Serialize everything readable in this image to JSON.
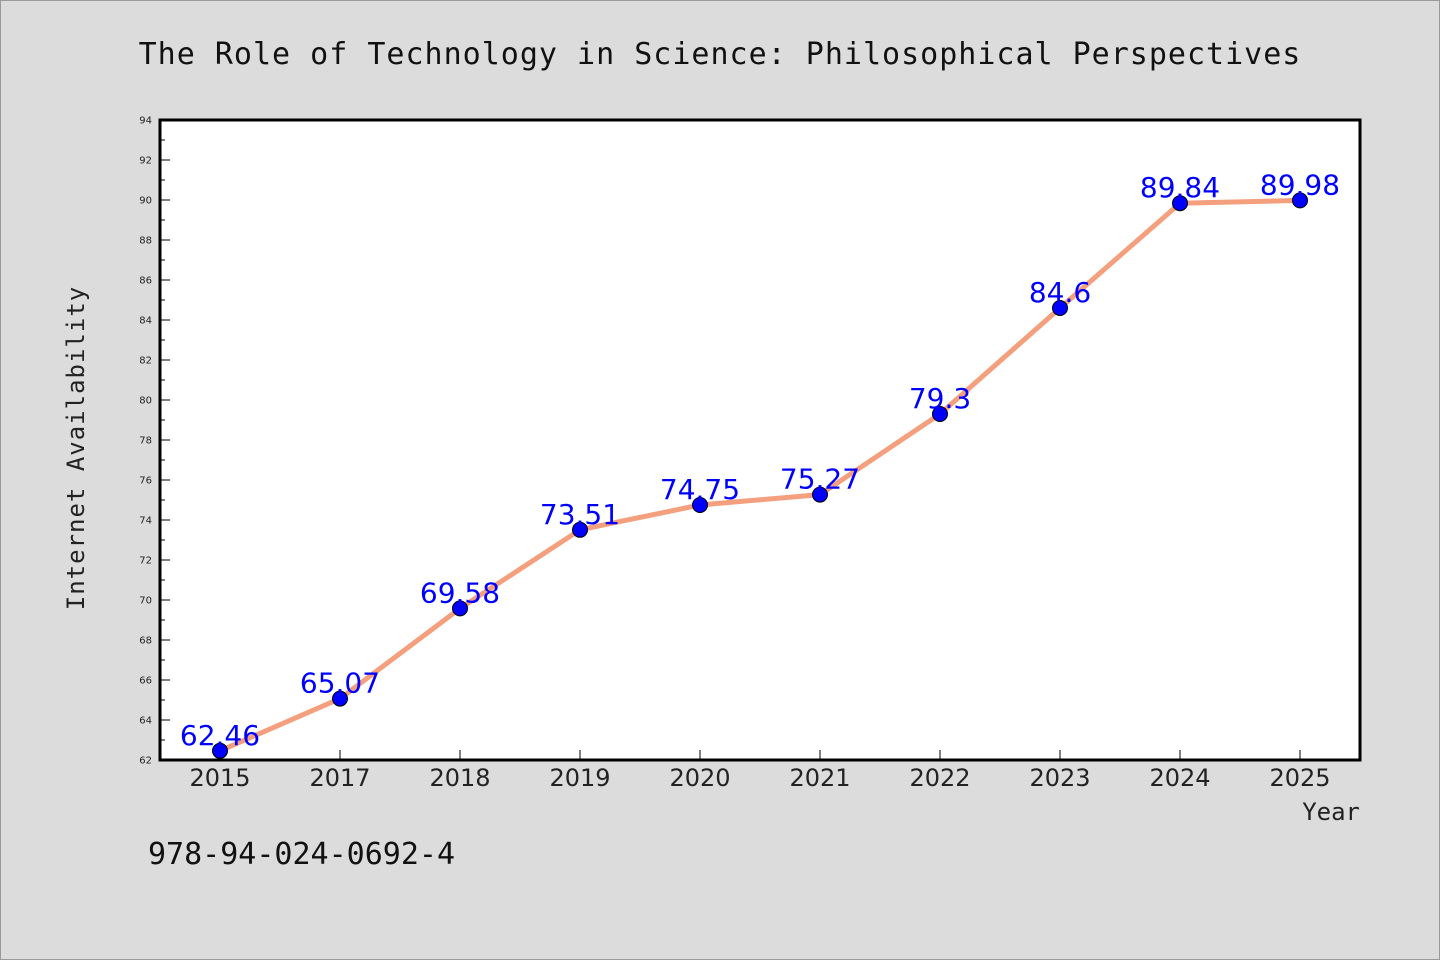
{
  "chart_data": {
    "type": "line",
    "title": "The Role of Technology in Science: Philosophical Perspectives",
    "xlabel": "Year",
    "ylabel": "Internet Availability",
    "categories": [
      "2015",
      "2017",
      "2018",
      "2019",
      "2020",
      "2021",
      "2022",
      "2023",
      "2024",
      "2025"
    ],
    "values": [
      62.46,
      65.07,
      69.58,
      73.51,
      74.75,
      75.27,
      79.3,
      84.6,
      89.84,
      89.98
    ],
    "data_labels": [
      "62.46",
      "65.07",
      "69.58",
      "73.51",
      "74.75",
      "75.27",
      "79.3",
      "84.6",
      "89.84",
      "89.98"
    ],
    "ylim": [
      62,
      94
    ],
    "y_ticks": [
      62,
      64,
      66,
      68,
      70,
      72,
      74,
      76,
      78,
      80,
      82,
      84,
      86,
      88,
      90,
      92,
      94
    ],
    "grid": false,
    "line_color": "#f4a07e",
    "marker_color": "#0000ff",
    "label_color": "#0000ff"
  },
  "footer": {
    "isbn": "978-94-024-0692-4"
  }
}
